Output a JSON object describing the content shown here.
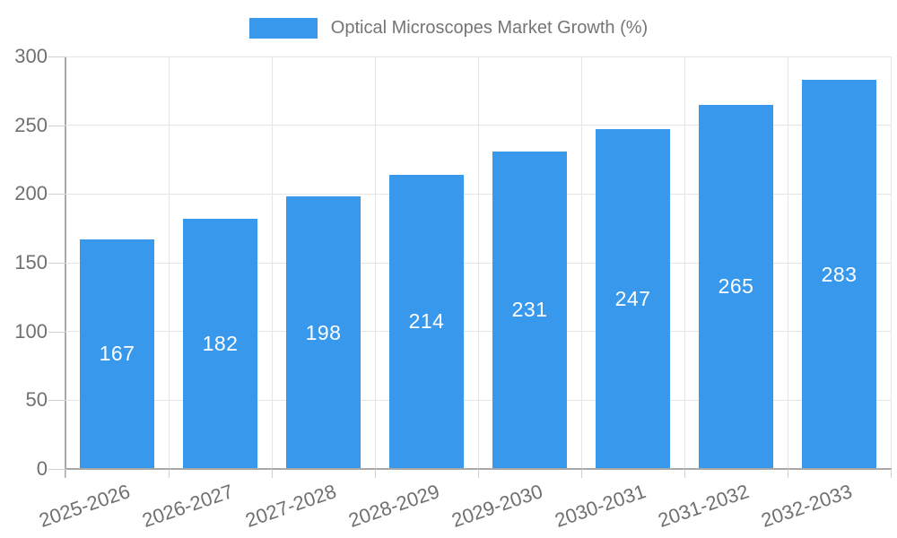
{
  "chart_data": {
    "type": "bar",
    "title": "Optical Microscopes Market Growth (%)",
    "categories": [
      "2025-2026",
      "2026-2027",
      "2027-2028",
      "2028-2029",
      "2029-2030",
      "2030-2031",
      "2031-2032",
      "2032-2033"
    ],
    "values": [
      167,
      182,
      198,
      214,
      231,
      247,
      265,
      283
    ],
    "value_labels_shown": true,
    "xlabel": "",
    "ylabel": "",
    "ylim": [
      0,
      300
    ],
    "yticks": [
      0,
      50,
      100,
      150,
      200,
      250,
      300
    ],
    "grid": true,
    "legend_position": "top",
    "x_label_rotation_deg": -19,
    "colors": {
      "bar": "#3898ec",
      "value_label": "#ffffff",
      "tick_label": "#707070",
      "legend_label": "#757575",
      "axis": "#a8a8a8",
      "gridline": "#e5e5e5",
      "tick_mark": "#cfcfcf",
      "background": "#ffffff"
    }
  }
}
